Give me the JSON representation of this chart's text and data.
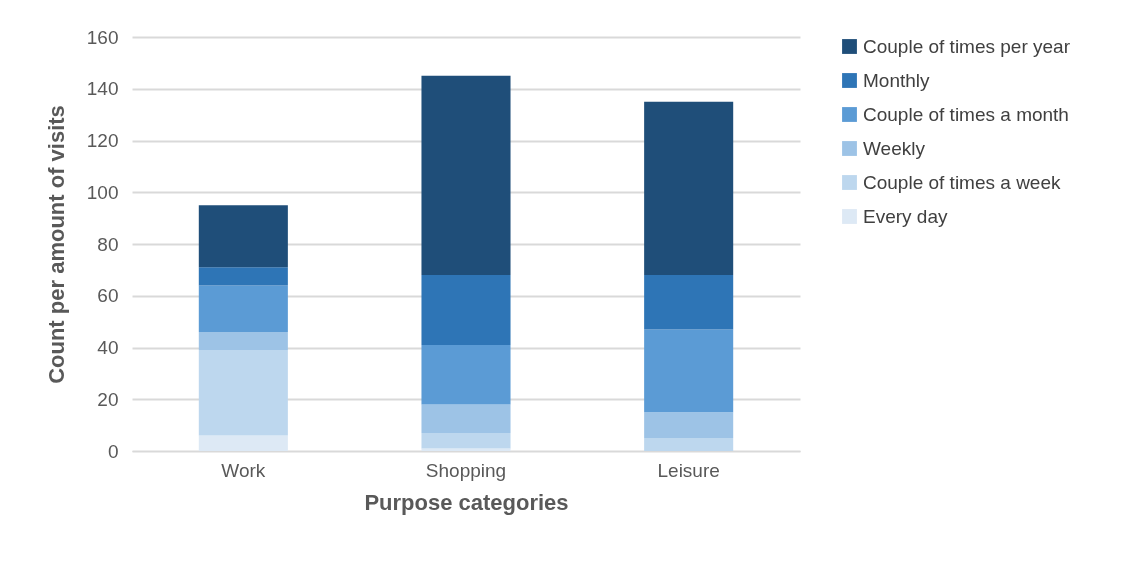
{
  "chart_data": {
    "type": "bar",
    "stacked": true,
    "xlabel": "Purpose categories",
    "ylabel": "Count per amount of visits",
    "categories": [
      "Work",
      "Shopping",
      "Leisure"
    ],
    "series": [
      {
        "name": "Every day",
        "color": "#dde9f5",
        "values": [
          6,
          1,
          0
        ]
      },
      {
        "name": "Couple of times a week",
        "color": "#bdd7ee",
        "values": [
          33,
          6,
          5
        ]
      },
      {
        "name": "Weekly",
        "color": "#9dc3e6",
        "values": [
          7,
          11,
          10
        ]
      },
      {
        "name": "Couple of times a month",
        "color": "#5b9bd5",
        "values": [
          18,
          23,
          32
        ]
      },
      {
        "name": "Monthly",
        "color": "#2e75b6",
        "values": [
          7,
          27,
          21
        ]
      },
      {
        "name": "Couple of times per year",
        "color": "#1f4e79",
        "values": [
          24,
          77,
          67
        ]
      }
    ],
    "ylim": [
      0,
      160
    ],
    "yticks": [
      0,
      20,
      40,
      60,
      80,
      100,
      120,
      140,
      160
    ],
    "grid": "y",
    "legend": "right"
  }
}
